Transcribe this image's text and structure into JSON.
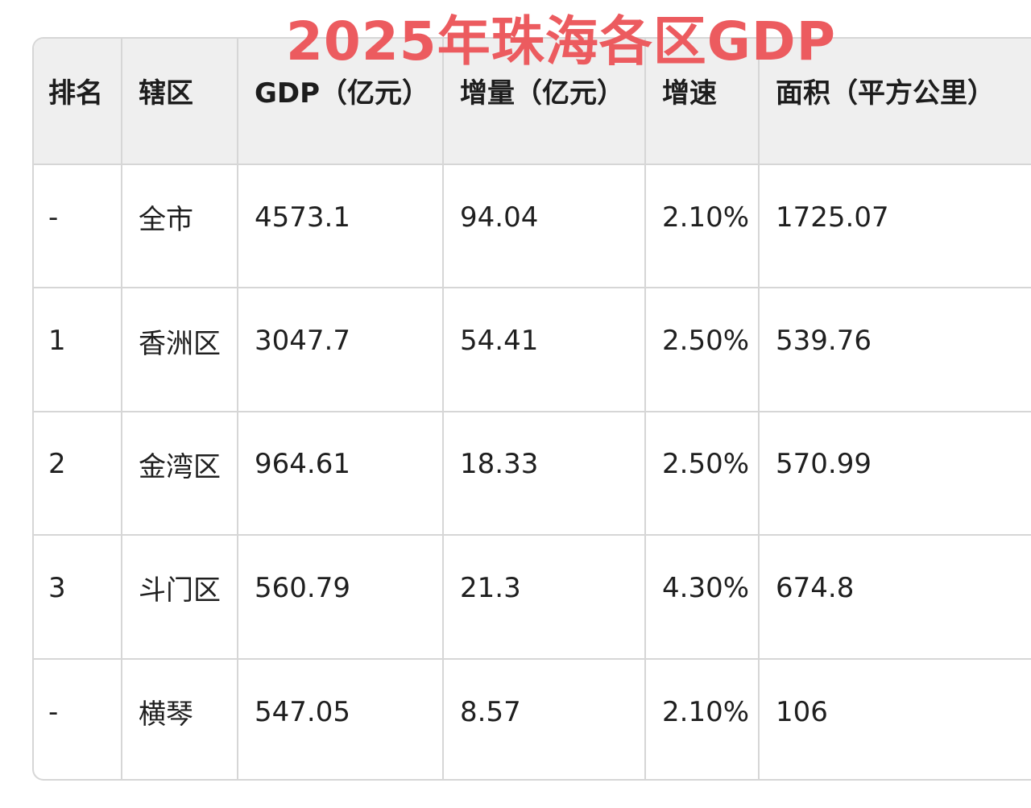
{
  "title": "2025年珠海各区GDP",
  "colors": {
    "title": "#ec5b5f",
    "header_bg": "#efefef",
    "grid": "#d6d6d6",
    "text": "#1f1f1f"
  },
  "chart_data": {
    "type": "table",
    "title": "2025年珠海各区GDP",
    "columns": [
      "排名",
      "辖区",
      "GDP（亿元）",
      "增量（亿元）",
      "增速",
      "面积（平方公里）"
    ],
    "rows": [
      [
        "-",
        "全市",
        "4573.1",
        "94.04",
        "2.10%",
        "1725.07"
      ],
      [
        "1",
        "香洲区",
        "3047.7",
        "54.41",
        "2.50%",
        "539.76"
      ],
      [
        "2",
        "金湾区",
        "964.61",
        "18.33",
        "2.50%",
        "570.99"
      ],
      [
        "3",
        "斗门区",
        "560.79",
        "21.3",
        "4.30%",
        "674.8"
      ],
      [
        "-",
        "横琴",
        "547.05",
        "8.57",
        "2.10%",
        "106"
      ]
    ]
  }
}
